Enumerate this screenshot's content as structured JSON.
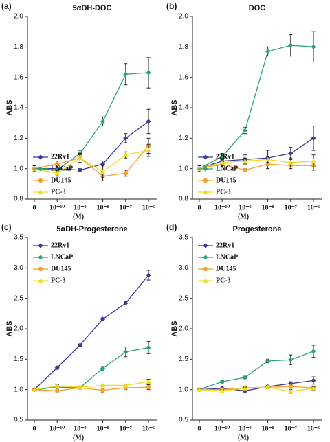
{
  "chart_data": [
    {
      "type": "line",
      "panel_label": "(a)",
      "title": "5αDH-DOC",
      "y_label": "ABS",
      "x_label": "(M)",
      "legend": "lower left",
      "categories": [
        "0",
        "10⁻¹⁰",
        "10⁻⁹",
        "10⁻⁸",
        "10⁻⁷",
        "10⁻⁶"
      ],
      "ylim": [
        0.8,
        2.0
      ],
      "yticks": [
        0.8,
        {
          "value": 1,
          "label": "1.0"
        },
        1.2,
        1.4,
        1.6,
        1.8,
        {
          "value": 2,
          "label": "2.0"
        }
      ],
      "series": [
        {
          "name": "22Rv1",
          "color": "#3a3a9e",
          "marker": "diamond",
          "values": [
            1.0,
            1.0,
            0.99,
            1.03,
            1.2,
            1.31
          ],
          "errors": [
            0.02,
            0.02,
            0.01,
            0.02,
            0.03,
            0.08
          ]
        },
        {
          "name": "LNCaP",
          "color": "#2aa37a",
          "marker": "diamond",
          "values": [
            1.0,
            0.99,
            1.1,
            1.31,
            1.62,
            1.63
          ],
          "errors": [
            0.02,
            0.03,
            0.02,
            0.03,
            0.07,
            0.1
          ]
        },
        {
          "name": "DU145",
          "color": "#f5a030",
          "marker": "circle",
          "values": [
            1.0,
            1.03,
            1.07,
            0.95,
            0.97,
            1.15
          ],
          "errors": [
            0.02,
            0.02,
            0.03,
            0.03,
            0.02,
            0.05
          ]
        },
        {
          "name": "PC-3",
          "color": "#eedc1c",
          "marker": "triangle",
          "values": [
            1.0,
            0.97,
            1.07,
            0.98,
            1.09,
            1.12
          ],
          "errors": [
            0.02,
            0.02,
            0.02,
            0.04,
            0.02,
            0.04
          ]
        }
      ]
    },
    {
      "type": "line",
      "panel_label": "(b)",
      "title": "DOC",
      "y_label": "ABS",
      "x_label": "(M)",
      "legend": "lower left",
      "categories": [
        "0",
        "10⁻¹⁰",
        "10⁻⁹",
        "10⁻⁸",
        "10⁻⁷",
        "10⁻⁶"
      ],
      "ylim": [
        0.8,
        2.0
      ],
      "yticks": [
        0.8,
        {
          "value": 1,
          "label": "1.0"
        },
        1.2,
        1.4,
        1.6,
        1.8,
        {
          "value": 2,
          "label": "2.0"
        }
      ],
      "series": [
        {
          "name": "22Rv1",
          "color": "#3a3a9e",
          "marker": "diamond",
          "values": [
            1.0,
            1.05,
            1.06,
            1.07,
            1.1,
            1.2
          ],
          "errors": [
            0.02,
            0.02,
            0.03,
            0.05,
            0.04,
            0.08
          ]
        },
        {
          "name": "LNCaP",
          "color": "#2aa37a",
          "marker": "diamond",
          "values": [
            1.0,
            1.08,
            1.25,
            1.77,
            1.81,
            1.8
          ],
          "errors": [
            0.02,
            0.02,
            0.02,
            0.03,
            0.07,
            0.1
          ]
        },
        {
          "name": "DU145",
          "color": "#f5a030",
          "marker": "circle",
          "values": [
            1.0,
            1.03,
            0.99,
            1.03,
            1.02,
            1.02
          ],
          "errors": [
            0.02,
            0.02,
            0.01,
            0.03,
            0.02,
            0.03
          ]
        },
        {
          "name": "PC-3",
          "color": "#eedc1c",
          "marker": "triangle",
          "values": [
            1.0,
            1.04,
            1.05,
            1.06,
            1.04,
            1.05
          ],
          "errors": [
            0.02,
            0.02,
            0.02,
            0.02,
            0.03,
            0.04
          ]
        }
      ]
    },
    {
      "type": "line",
      "panel_label": "(c)",
      "title": "5αDH-Progesterone",
      "y_label": "ABS",
      "x_label": "(M)",
      "legend": "upper left",
      "categories": [
        "0",
        "10⁻¹⁰",
        "10⁻⁹",
        "10⁻⁸",
        "10⁻⁷",
        "10⁻⁶"
      ],
      "ylim": [
        0.5,
        3.5
      ],
      "yticks": [
        0.5,
        {
          "value": 1,
          "label": "1.0"
        },
        1.5,
        {
          "value": 2,
          "label": "2.0"
        },
        2.5,
        {
          "value": 3,
          "label": "3.0"
        },
        3.5
      ],
      "series": [
        {
          "name": "22Rv1",
          "color": "#3a3a9e",
          "marker": "diamond",
          "values": [
            1.0,
            1.36,
            1.73,
            2.16,
            2.42,
            2.88
          ],
          "errors": [
            0.02,
            0.02,
            0.02,
            0.02,
            0.03,
            0.08
          ]
        },
        {
          "name": "LNCaP",
          "color": "#2aa37a",
          "marker": "diamond",
          "values": [
            1.0,
            1.04,
            1.03,
            1.35,
            1.62,
            1.69
          ],
          "errors": [
            0.02,
            0.02,
            0.02,
            0.03,
            0.08,
            0.1
          ]
        },
        {
          "name": "DU145",
          "color": "#f5a030",
          "marker": "circle",
          "values": [
            1.0,
            0.98,
            1.03,
            0.99,
            1.03,
            1.04
          ],
          "errors": [
            0.02,
            0.02,
            0.02,
            0.03,
            0.03,
            0.04
          ]
        },
        {
          "name": "PC-3",
          "color": "#eedc1c",
          "marker": "triangle",
          "values": [
            1.0,
            1.06,
            1.04,
            1.07,
            1.07,
            1.13
          ],
          "errors": [
            0.02,
            0.02,
            0.02,
            0.02,
            0.02,
            0.04
          ]
        }
      ]
    },
    {
      "type": "line",
      "panel_label": "(d)",
      "title": "Progesterone",
      "y_label": "ABS",
      "x_label": "(M)",
      "legend": "upper left",
      "categories": [
        "0",
        "10⁻¹⁰",
        "10⁻⁹",
        "10⁻⁸",
        "10⁻⁷",
        "10⁻⁶"
      ],
      "ylim": [
        0.5,
        3.5
      ],
      "yticks": [
        0.5,
        {
          "value": 1,
          "label": "1.0"
        },
        1.5,
        {
          "value": 2,
          "label": "2.0"
        },
        2.5,
        {
          "value": 3,
          "label": "3.0"
        },
        3.5
      ],
      "series": [
        {
          "name": "22Rv1",
          "color": "#3a3a9e",
          "marker": "diamond",
          "values": [
            1.0,
            1.02,
            0.98,
            1.05,
            1.1,
            1.15
          ],
          "errors": [
            0.02,
            0.02,
            0.02,
            0.02,
            0.03,
            0.06
          ]
        },
        {
          "name": "LNCaP",
          "color": "#2aa37a",
          "marker": "diamond",
          "values": [
            1.0,
            1.13,
            1.2,
            1.47,
            1.49,
            1.63
          ],
          "errors": [
            0.02,
            0.02,
            0.02,
            0.03,
            0.08,
            0.1
          ]
        },
        {
          "name": "DU145",
          "color": "#f5a030",
          "marker": "circle",
          "values": [
            1.0,
            1.0,
            1.03,
            1.04,
            1.05,
            1.03
          ],
          "errors": [
            0.02,
            0.02,
            0.02,
            0.02,
            0.03,
            0.03
          ]
        },
        {
          "name": "PC-3",
          "color": "#eedc1c",
          "marker": "triangle",
          "values": [
            1.0,
            0.98,
            1.02,
            1.04,
            0.97,
            1.02
          ],
          "errors": [
            0.02,
            0.02,
            0.02,
            0.02,
            0.03,
            0.03
          ]
        }
      ]
    }
  ]
}
